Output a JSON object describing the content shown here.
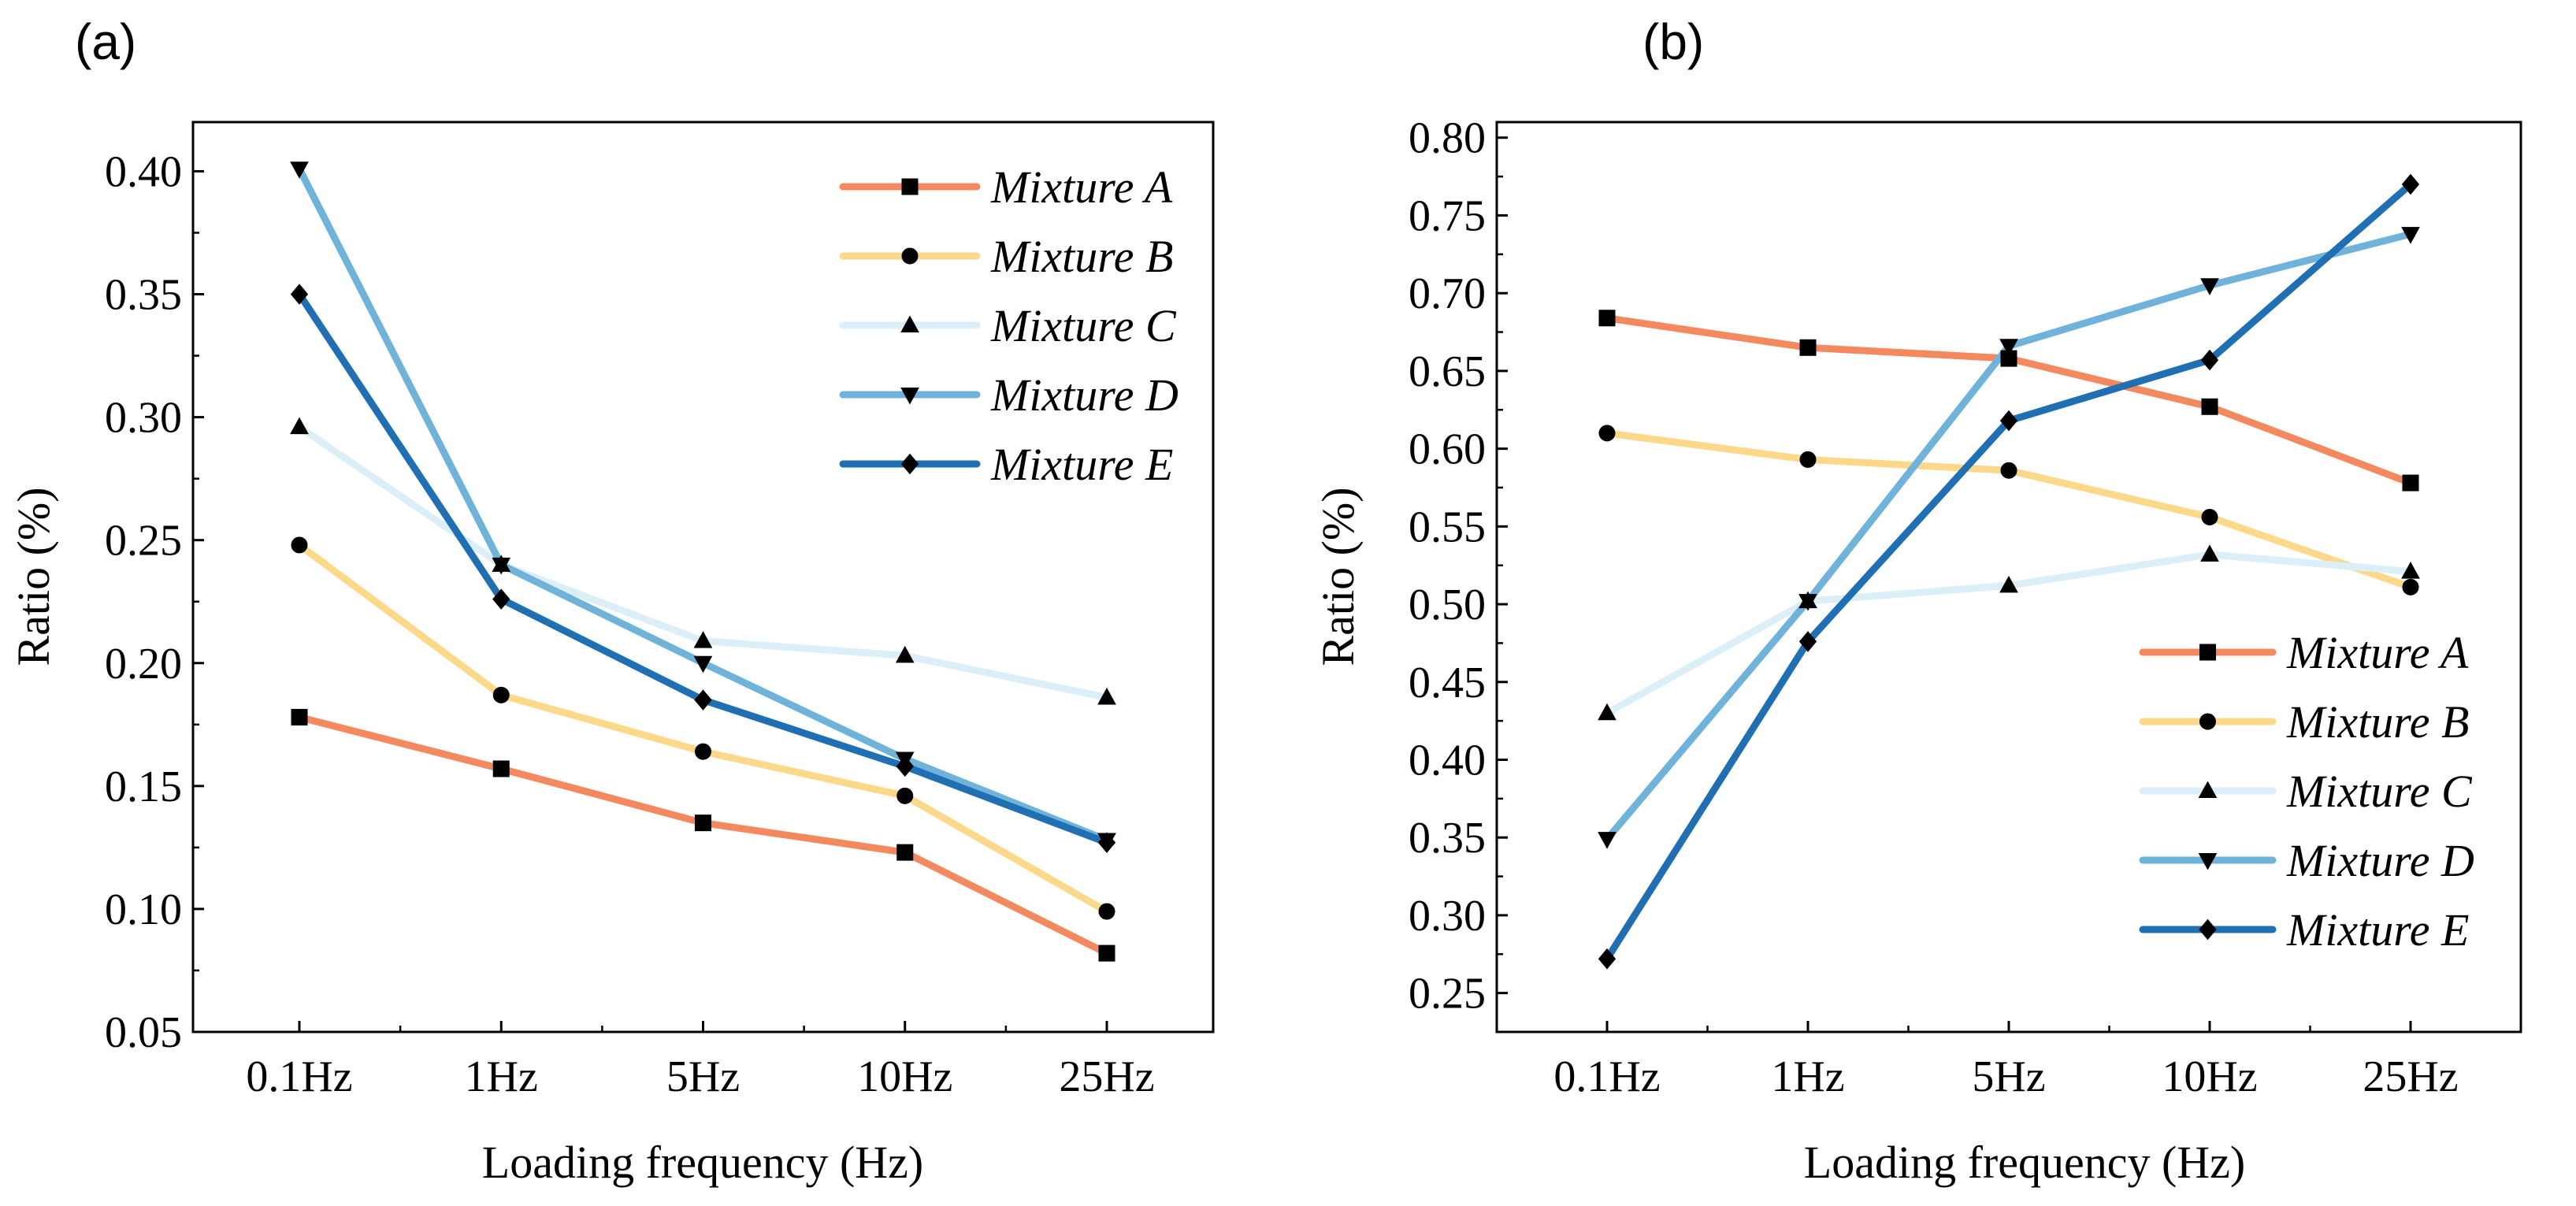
{
  "chart_data": [
    {
      "panel_label": "(a)",
      "type": "line",
      "categories": [
        "0.1Hz",
        "1Hz",
        "5Hz",
        "10Hz",
        "25Hz"
      ],
      "xlabel": "Loading frequency (Hz)",
      "ylabel": "Ratio (%)",
      "ylim": [
        0.05,
        0.42
      ],
      "yticks": [
        0.05,
        0.1,
        0.15,
        0.2,
        0.25,
        0.3,
        0.35,
        0.4
      ],
      "ytick_labels": [
        "0.05",
        "0.10",
        "0.15",
        "0.20",
        "0.25",
        "0.30",
        "0.35",
        "0.40"
      ],
      "legend_position": "top-right",
      "grid": false,
      "series": [
        {
          "name": "Mixture A",
          "marker": "square",
          "color": "#F4895F",
          "values": [
            0.178,
            0.157,
            0.135,
            0.123,
            0.082
          ]
        },
        {
          "name": "Mixture B",
          "marker": "circle",
          "color": "#FCD98A",
          "values": [
            0.248,
            0.187,
            0.164,
            0.146,
            0.099
          ]
        },
        {
          "name": "Mixture C",
          "marker": "triangle-up",
          "color": "#DCEFF8",
          "values": [
            0.296,
            0.24,
            0.209,
            0.203,
            0.186
          ]
        },
        {
          "name": "Mixture D",
          "marker": "triangle-down",
          "color": "#6FB3DA",
          "values": [
            0.401,
            0.24,
            0.2,
            0.161,
            0.128
          ]
        },
        {
          "name": "Mixture E",
          "marker": "diamond",
          "color": "#1F6FB2",
          "values": [
            0.35,
            0.226,
            0.185,
            0.158,
            0.127
          ]
        }
      ]
    },
    {
      "panel_label": "(b)",
      "type": "line",
      "categories": [
        "0.1Hz",
        "1Hz",
        "5Hz",
        "10Hz",
        "25Hz"
      ],
      "xlabel": "Loading frequency (Hz)",
      "ylabel": "Ratio (%)",
      "ylim": [
        0.225,
        0.81
      ],
      "yticks": [
        0.25,
        0.3,
        0.35,
        0.4,
        0.45,
        0.5,
        0.55,
        0.6,
        0.65,
        0.7,
        0.75,
        0.8
      ],
      "ytick_labels": [
        "0.25",
        "0.30",
        "0.35",
        "0.40",
        "0.45",
        "0.50",
        "0.55",
        "0.60",
        "0.65",
        "0.70",
        "0.75",
        "0.80"
      ],
      "legend_position": "bottom-right",
      "grid": false,
      "series": [
        {
          "name": "Mixture A",
          "marker": "square",
          "color": "#F4895F",
          "values": [
            0.684,
            0.665,
            0.658,
            0.627,
            0.578
          ]
        },
        {
          "name": "Mixture B",
          "marker": "circle",
          "color": "#FCD98A",
          "values": [
            0.61,
            0.593,
            0.586,
            0.556,
            0.511
          ]
        },
        {
          "name": "Mixture C",
          "marker": "triangle-up",
          "color": "#DCEFF8",
          "values": [
            0.43,
            0.502,
            0.512,
            0.532,
            0.521
          ]
        },
        {
          "name": "Mixture D",
          "marker": "triangle-down",
          "color": "#6FB3DA",
          "values": [
            0.349,
            0.502,
            0.666,
            0.705,
            0.738
          ]
        },
        {
          "name": "Mixture E",
          "marker": "diamond",
          "color": "#1F6FB2",
          "values": [
            0.272,
            0.476,
            0.618,
            0.657,
            0.77
          ]
        }
      ]
    }
  ]
}
